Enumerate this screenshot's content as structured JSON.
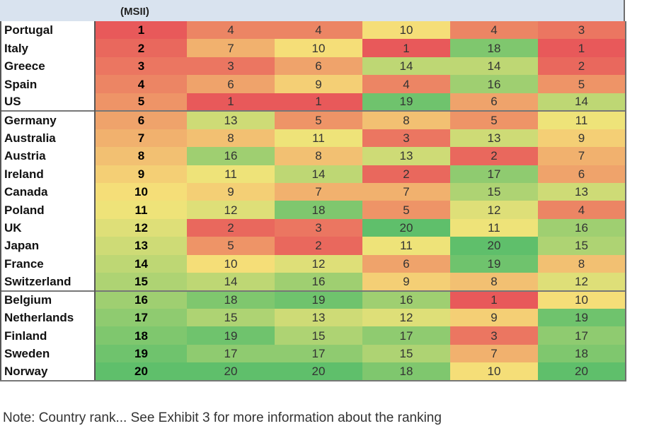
{
  "header": {
    "rank_column_label": "(MSII)"
  },
  "rows": [
    {
      "country": "Portugal",
      "rank": "1",
      "values": [
        "4",
        "4",
        "10",
        "4",
        "3"
      ]
    },
    {
      "country": "Italy",
      "rank": "2",
      "values": [
        "7",
        "10",
        "1",
        "18",
        "1"
      ]
    },
    {
      "country": "Greece",
      "rank": "3",
      "values": [
        "3",
        "6",
        "14",
        "14",
        "2"
      ]
    },
    {
      "country": "Spain",
      "rank": "4",
      "values": [
        "6",
        "9",
        "4",
        "16",
        "5"
      ]
    },
    {
      "country": "US",
      "rank": "5",
      "values": [
        "1",
        "1",
        "19",
        "6",
        "14"
      ]
    },
    {
      "country": "Germany",
      "rank": "6",
      "values": [
        "13",
        "5",
        "8",
        "5",
        "11"
      ]
    },
    {
      "country": "Australia",
      "rank": "7",
      "values": [
        "8",
        "11",
        "3",
        "13",
        "9"
      ]
    },
    {
      "country": "Austria",
      "rank": "8",
      "values": [
        "16",
        "8",
        "13",
        "2",
        "7"
      ]
    },
    {
      "country": "Ireland",
      "rank": "9",
      "values": [
        "11",
        "14",
        "2",
        "17",
        "6"
      ]
    },
    {
      "country": "Canada",
      "rank": "10",
      "values": [
        "9",
        "7",
        "7",
        "15",
        "13"
      ]
    },
    {
      "country": "Poland",
      "rank": "11",
      "values": [
        "12",
        "18",
        "5",
        "12",
        "4"
      ]
    },
    {
      "country": "UK",
      "rank": "12",
      "values": [
        "2",
        "3",
        "20",
        "11",
        "16"
      ]
    },
    {
      "country": "Japan",
      "rank": "13",
      "values": [
        "5",
        "2",
        "11",
        "20",
        "15"
      ]
    },
    {
      "country": "France",
      "rank": "14",
      "values": [
        "10",
        "12",
        "6",
        "19",
        "8"
      ]
    },
    {
      "country": "Switzerland",
      "rank": "15",
      "values": [
        "14",
        "16",
        "9",
        "8",
        "12"
      ]
    },
    {
      "country": "Belgium",
      "rank": "16",
      "values": [
        "18",
        "19",
        "16",
        "1",
        "10"
      ]
    },
    {
      "country": "Netherlands",
      "rank": "17",
      "values": [
        "15",
        "13",
        "12",
        "9",
        "19"
      ]
    },
    {
      "country": "Finland",
      "rank": "18",
      "values": [
        "19",
        "15",
        "17",
        "3",
        "17"
      ]
    },
    {
      "country": "Sweden",
      "rank": "19",
      "values": [
        "17",
        "17",
        "15",
        "7",
        "18"
      ]
    },
    {
      "country": "Norway",
      "rank": "20",
      "values": [
        "20",
        "20",
        "18",
        "10",
        "20"
      ]
    }
  ],
  "group_start_rows": [
    5,
    15
  ],
  "color_scale": {
    "low_rank": "#e8595a",
    "mid_rank": "#f6e57a",
    "high_rank": "#5fbf6b",
    "max_rank": 20
  },
  "note": "Note: Country rank... See Exhibit 3 for more information about the ranking"
}
